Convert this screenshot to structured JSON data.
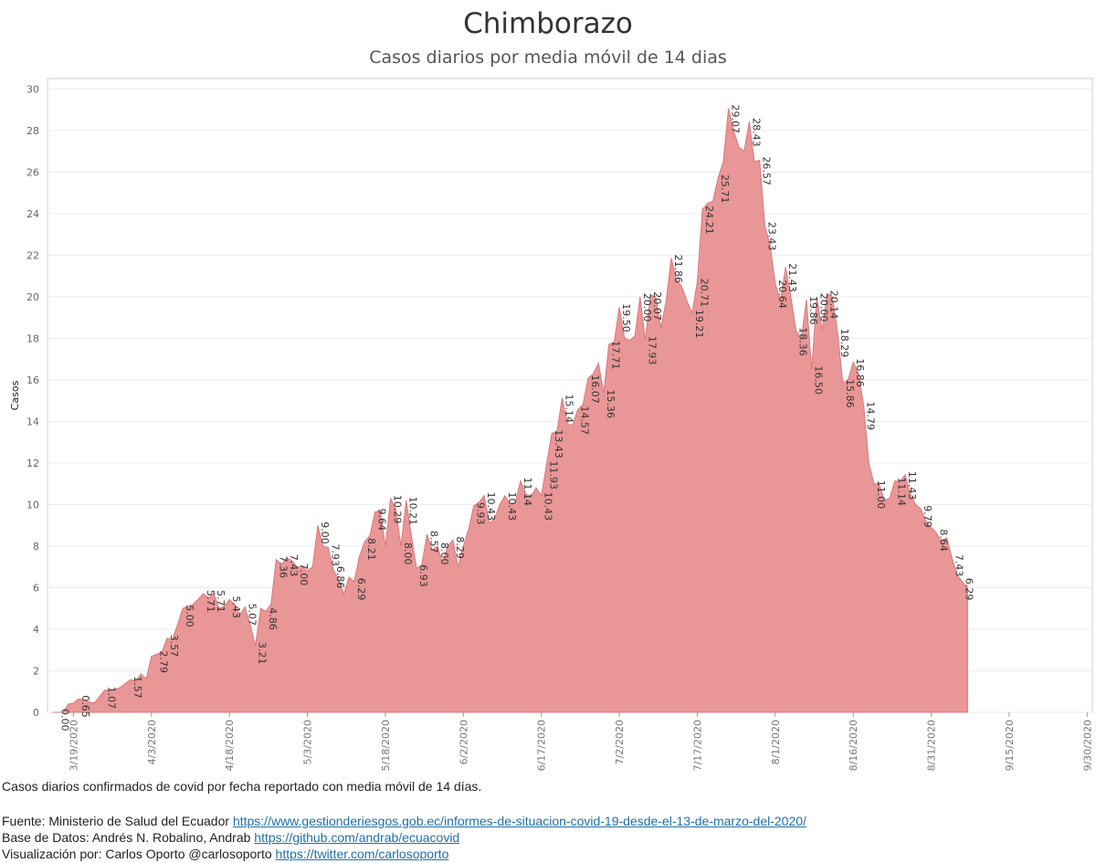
{
  "title": "Chimborazo",
  "subtitle": "Casos diarios por media móvil de 14 dias",
  "footer": {
    "description": "Casos diarios confirmados de covid por fecha reportado con media móvil de 14 días.",
    "source_label": "Fuente: Ministerio de Salud del Ecuador",
    "source_link": "https://www.gestionderiesgos.gob.ec/informes-de-situacion-covid-19-desde-el-13-de-marzo-del-2020/",
    "database_label": "Base de Datos: Andrés N. Robalino, Andrab",
    "database_link": "https://github.com/andrab/ecuacovid",
    "viz_label": "Visualización por: Carlos Oporto @carlosoporto",
    "viz_link": "https://twitter.com/carlosoporto"
  },
  "colors": {
    "area": "#e99697",
    "area_stroke": "#d97a7c",
    "grid": "#ececec",
    "axis": "#cfcfcf"
  },
  "chart_data": {
    "type": "area",
    "ylabel": "Casos",
    "xlabel": "",
    "ylim": [
      0,
      30.5
    ],
    "yticks": [
      0,
      2,
      4,
      6,
      8,
      10,
      12,
      14,
      16,
      18,
      20,
      22,
      24,
      26,
      28,
      30
    ],
    "xticks": [
      "3/19/2020",
      "4/3/2020",
      "4/18/2020",
      "5/3/2020",
      "5/18/2020",
      "6/2/2020",
      "6/17/2020",
      "7/2/2020",
      "7/17/2020",
      "8/1/2020",
      "8/16/2020",
      "8/31/2020",
      "9/15/2020",
      "9/30/2020"
    ],
    "grid": true,
    "x_start": "3/14/2020",
    "x_end": "10/1/2020",
    "series": [
      {
        "points": [
          [
            "3/15/2020",
            0.0
          ],
          [
            "3/17/2020",
            0.0
          ],
          [
            "3/18/2020",
            0.4
          ],
          [
            "3/19/2020",
            0.45
          ],
          [
            "3/20/2020",
            0.65
          ],
          [
            "3/21/2020",
            0.6
          ],
          [
            "3/22/2020",
            0.5
          ],
          [
            "3/23/2020",
            0.45
          ],
          [
            "3/24/2020",
            0.75
          ],
          [
            "3/25/2020",
            1.07
          ],
          [
            "3/26/2020",
            1.05
          ],
          [
            "3/27/2020",
            1.1
          ],
          [
            "3/28/2020",
            1.2
          ],
          [
            "3/29/2020",
            1.4
          ],
          [
            "3/30/2020",
            1.57
          ],
          [
            "3/31/2020",
            1.5
          ],
          [
            "4/1/2020",
            1.85
          ],
          [
            "4/2/2020",
            1.6
          ],
          [
            "4/3/2020",
            2.7
          ],
          [
            "4/4/2020",
            2.79
          ],
          [
            "4/5/2020",
            2.9
          ],
          [
            "4/6/2020",
            3.57
          ],
          [
            "4/7/2020",
            3.5
          ],
          [
            "4/8/2020",
            4.2
          ],
          [
            "4/9/2020",
            5.0
          ],
          [
            "4/10/2020",
            5.1
          ],
          [
            "4/11/2020",
            5.2
          ],
          [
            "4/12/2020",
            5.45
          ],
          [
            "4/13/2020",
            5.71
          ],
          [
            "4/14/2020",
            5.5
          ],
          [
            "4/15/2020",
            5.71
          ],
          [
            "4/16/2020",
            5.0
          ],
          [
            "4/17/2020",
            5.1
          ],
          [
            "4/18/2020",
            5.43
          ],
          [
            "4/19/2020",
            5.2
          ],
          [
            "4/20/2020",
            4.7
          ],
          [
            "4/21/2020",
            5.07
          ],
          [
            "4/22/2020",
            4.2
          ],
          [
            "4/23/2020",
            3.21
          ],
          [
            "4/24/2020",
            5.0
          ],
          [
            "4/25/2020",
            4.86
          ],
          [
            "4/26/2020",
            5.2
          ],
          [
            "4/27/2020",
            7.36
          ],
          [
            "4/28/2020",
            7.1
          ],
          [
            "4/29/2020",
            7.43
          ],
          [
            "4/30/2020",
            7.3
          ],
          [
            "5/1/2020",
            7.0
          ],
          [
            "5/2/2020",
            7.0
          ],
          [
            "5/3/2020",
            6.8
          ],
          [
            "5/4/2020",
            7.0
          ],
          [
            "5/5/2020",
            9.0
          ],
          [
            "5/6/2020",
            8.0
          ],
          [
            "5/7/2020",
            7.93
          ],
          [
            "5/8/2020",
            6.86
          ],
          [
            "5/9/2020",
            6.4
          ],
          [
            "5/10/2020",
            5.7
          ],
          [
            "5/11/2020",
            6.5
          ],
          [
            "5/12/2020",
            6.29
          ],
          [
            "5/13/2020",
            7.5
          ],
          [
            "5/14/2020",
            8.21
          ],
          [
            "5/15/2020",
            8.5
          ],
          [
            "5/16/2020",
            9.64
          ],
          [
            "5/17/2020",
            9.7
          ],
          [
            "5/18/2020",
            8.0
          ],
          [
            "5/19/2020",
            10.29
          ],
          [
            "5/20/2020",
            9.8
          ],
          [
            "5/21/2020",
            8.0
          ],
          [
            "5/22/2020",
            10.21
          ],
          [
            "5/23/2020",
            8.5
          ],
          [
            "5/24/2020",
            6.93
          ],
          [
            "5/25/2020",
            7.1
          ],
          [
            "5/26/2020",
            8.57
          ],
          [
            "5/27/2020",
            7.8
          ],
          [
            "5/28/2020",
            8.0
          ],
          [
            "5/29/2020",
            7.2
          ],
          [
            "5/30/2020",
            8.0
          ],
          [
            "5/31/2020",
            8.29
          ],
          [
            "6/1/2020",
            7.0
          ],
          [
            "6/2/2020",
            8.0
          ],
          [
            "6/3/2020",
            8.8
          ],
          [
            "6/4/2020",
            9.93
          ],
          [
            "6/5/2020",
            10.1
          ],
          [
            "6/6/2020",
            10.43
          ],
          [
            "6/7/2020",
            9.1
          ],
          [
            "6/8/2020",
            9.3
          ],
          [
            "6/9/2020",
            10.0
          ],
          [
            "6/10/2020",
            10.43
          ],
          [
            "6/11/2020",
            10.0
          ],
          [
            "6/12/2020",
            10.1
          ],
          [
            "6/13/2020",
            11.14
          ],
          [
            "6/14/2020",
            10.5
          ],
          [
            "6/15/2020",
            10.4
          ],
          [
            "6/16/2020",
            10.8
          ],
          [
            "6/17/2020",
            10.43
          ],
          [
            "6/18/2020",
            11.93
          ],
          [
            "6/19/2020",
            13.43
          ],
          [
            "6/20/2020",
            13.5
          ],
          [
            "6/21/2020",
            15.14
          ],
          [
            "6/22/2020",
            13.9
          ],
          [
            "6/23/2020",
            13.8
          ],
          [
            "6/24/2020",
            14.57
          ],
          [
            "6/25/2020",
            14.8
          ],
          [
            "6/26/2020",
            16.07
          ],
          [
            "6/27/2020",
            16.3
          ],
          [
            "6/28/2020",
            16.8
          ],
          [
            "6/29/2020",
            15.36
          ],
          [
            "6/30/2020",
            17.71
          ],
          [
            "7/1/2020",
            17.8
          ],
          [
            "7/2/2020",
            19.5
          ],
          [
            "7/3/2020",
            18.0
          ],
          [
            "7/4/2020",
            17.9
          ],
          [
            "7/5/2020",
            18.1
          ],
          [
            "7/6/2020",
            20.0
          ],
          [
            "7/7/2020",
            17.93
          ],
          [
            "7/8/2020",
            20.07
          ],
          [
            "7/9/2020",
            20.0
          ],
          [
            "7/10/2020",
            18.5
          ],
          [
            "7/11/2020",
            19.8
          ],
          [
            "7/12/2020",
            21.86
          ],
          [
            "7/13/2020",
            20.8
          ],
          [
            "7/14/2020",
            20.5
          ],
          [
            "7/15/2020",
            19.8
          ],
          [
            "7/16/2020",
            19.21
          ],
          [
            "7/17/2020",
            20.71
          ],
          [
            "7/18/2020",
            24.21
          ],
          [
            "7/19/2020",
            24.5
          ],
          [
            "7/20/2020",
            24.6
          ],
          [
            "7/21/2020",
            25.71
          ],
          [
            "7/22/2020",
            26.5
          ],
          [
            "7/23/2020",
            29.07
          ],
          [
            "7/24/2020",
            28.0
          ],
          [
            "7/25/2020",
            27.2
          ],
          [
            "7/26/2020",
            27.0
          ],
          [
            "7/27/2020",
            28.43
          ],
          [
            "7/28/2020",
            26.5
          ],
          [
            "7/29/2020",
            26.57
          ],
          [
            "7/30/2020",
            23.43
          ],
          [
            "7/31/2020",
            22.5
          ],
          [
            "8/1/2020",
            20.64
          ],
          [
            "8/2/2020",
            19.8
          ],
          [
            "8/3/2020",
            21.43
          ],
          [
            "8/4/2020",
            20.0
          ],
          [
            "8/5/2020",
            18.36
          ],
          [
            "8/6/2020",
            18.0
          ],
          [
            "8/7/2020",
            19.86
          ],
          [
            "8/8/2020",
            16.5
          ],
          [
            "8/9/2020",
            20.0
          ],
          [
            "8/10/2020",
            18.4
          ],
          [
            "8/11/2020",
            20.14
          ],
          [
            "8/12/2020",
            20.0
          ],
          [
            "8/13/2020",
            18.29
          ],
          [
            "8/14/2020",
            15.86
          ],
          [
            "8/15/2020",
            16.0
          ],
          [
            "8/16/2020",
            16.86
          ],
          [
            "8/17/2020",
            16.3
          ],
          [
            "8/18/2020",
            14.79
          ],
          [
            "8/19/2020",
            12.0
          ],
          [
            "8/20/2020",
            11.0
          ],
          [
            "8/21/2020",
            11.0
          ],
          [
            "8/22/2020",
            10.2
          ],
          [
            "8/23/2020",
            10.3
          ],
          [
            "8/24/2020",
            11.14
          ],
          [
            "8/25/2020",
            11.1
          ],
          [
            "8/26/2020",
            11.43
          ],
          [
            "8/27/2020",
            10.5
          ],
          [
            "8/28/2020",
            10.0
          ],
          [
            "8/29/2020",
            9.79
          ],
          [
            "8/30/2020",
            9.2
          ],
          [
            "8/31/2020",
            8.9
          ],
          [
            "9/1/2020",
            8.64
          ],
          [
            "9/2/2020",
            8.2
          ],
          [
            "9/3/2020",
            8.4
          ],
          [
            "9/4/2020",
            7.43
          ],
          [
            "9/5/2020",
            6.6
          ],
          [
            "9/6/2020",
            6.29
          ],
          [
            "9/7/2020",
            6.0
          ]
        ]
      }
    ],
    "annotations": [
      [
        "3/16/2020",
        0.0,
        "0.00"
      ],
      [
        "3/20/2020",
        0.65,
        "0.65"
      ],
      [
        "3/25/2020",
        1.07,
        "1.07"
      ],
      [
        "3/30/2020",
        1.57,
        "1.57"
      ],
      [
        "4/4/2020",
        2.79,
        "2.79"
      ],
      [
        "4/6/2020",
        3.57,
        "3.57"
      ],
      [
        "4/9/2020",
        5.0,
        "5.00"
      ],
      [
        "4/13/2020",
        5.71,
        "5.71"
      ],
      [
        "4/15/2020",
        5.71,
        "5.71"
      ],
      [
        "4/18/2020",
        5.43,
        "5.43"
      ],
      [
        "4/21/2020",
        5.07,
        "5.07"
      ],
      [
        "4/23/2020",
        3.21,
        "3.21"
      ],
      [
        "4/25/2020",
        4.86,
        "4.86"
      ],
      [
        "4/27/2020",
        7.36,
        "7.36"
      ],
      [
        "4/29/2020",
        7.43,
        "7.43"
      ],
      [
        "5/1/2020",
        7.0,
        "7.00"
      ],
      [
        "5/5/2020",
        9.0,
        "9.00"
      ],
      [
        "5/7/2020",
        7.93,
        "7.93"
      ],
      [
        "5/8/2020",
        6.86,
        "6.86"
      ],
      [
        "5/12/2020",
        6.29,
        "6.29"
      ],
      [
        "5/14/2020",
        8.21,
        "8.21"
      ],
      [
        "5/16/2020",
        9.64,
        "9.64"
      ],
      [
        "5/19/2020",
        10.29,
        "10.29"
      ],
      [
        "5/21/2020",
        8.0,
        "8.00"
      ],
      [
        "5/22/2020",
        10.21,
        "10.21"
      ],
      [
        "5/24/2020",
        6.93,
        "6.93"
      ],
      [
        "5/26/2020",
        8.57,
        "8.57"
      ],
      [
        "5/28/2020",
        8.0,
        "8.00"
      ],
      [
        "5/31/2020",
        8.29,
        "8.29"
      ],
      [
        "6/4/2020",
        9.93,
        "9.93"
      ],
      [
        "6/6/2020",
        10.43,
        "10.43"
      ],
      [
        "6/10/2020",
        10.43,
        "10.43"
      ],
      [
        "6/13/2020",
        11.14,
        "11.14"
      ],
      [
        "6/17/2020",
        10.43,
        "10.43"
      ],
      [
        "6/18/2020",
        11.93,
        "11.93"
      ],
      [
        "6/19/2020",
        13.43,
        "13.43"
      ],
      [
        "6/21/2020",
        15.14,
        "15.14"
      ],
      [
        "6/24/2020",
        14.57,
        "14.57"
      ],
      [
        "6/26/2020",
        16.07,
        "16.07"
      ],
      [
        "6/29/2020",
        15.36,
        "15.36"
      ],
      [
        "6/30/2020",
        17.71,
        "17.71"
      ],
      [
        "7/2/2020",
        19.5,
        "19.50"
      ],
      [
        "7/6/2020",
        20.0,
        "20.00"
      ],
      [
        "7/7/2020",
        17.93,
        "17.93"
      ],
      [
        "7/8/2020",
        20.07,
        "20.07"
      ],
      [
        "7/12/2020",
        21.86,
        "21.86"
      ],
      [
        "7/16/2020",
        19.21,
        "19.21"
      ],
      [
        "7/17/2020",
        20.71,
        "20.71"
      ],
      [
        "7/18/2020",
        24.21,
        "24.21"
      ],
      [
        "7/21/2020",
        25.71,
        "25.71"
      ],
      [
        "7/23/2020",
        29.07,
        "29.07"
      ],
      [
        "7/27/2020",
        28.43,
        "28.43"
      ],
      [
        "7/29/2020",
        26.57,
        "26.57"
      ],
      [
        "7/30/2020",
        23.43,
        "23.43"
      ],
      [
        "8/1/2020",
        20.64,
        "20.64"
      ],
      [
        "8/3/2020",
        21.43,
        "21.43"
      ],
      [
        "8/5/2020",
        18.36,
        "18.36"
      ],
      [
        "8/7/2020",
        19.86,
        "19.86"
      ],
      [
        "8/8/2020",
        16.5,
        "16.50"
      ],
      [
        "8/9/2020",
        20.0,
        "20.00"
      ],
      [
        "8/11/2020",
        20.14,
        "20.14"
      ],
      [
        "8/13/2020",
        18.29,
        "18.29"
      ],
      [
        "8/14/2020",
        15.86,
        "15.86"
      ],
      [
        "8/16/2020",
        16.86,
        "16.86"
      ],
      [
        "8/18/2020",
        14.79,
        "14.79"
      ],
      [
        "8/20/2020",
        11.0,
        "11.00"
      ],
      [
        "8/24/2020",
        11.14,
        "11.14"
      ],
      [
        "8/26/2020",
        11.43,
        "11.43"
      ],
      [
        "8/29/2020",
        9.79,
        "9.79"
      ],
      [
        "9/1/2020",
        8.64,
        "8.64"
      ],
      [
        "9/4/2020",
        7.43,
        "7.43"
      ],
      [
        "9/6/2020",
        6.29,
        "6.29"
      ]
    ]
  }
}
